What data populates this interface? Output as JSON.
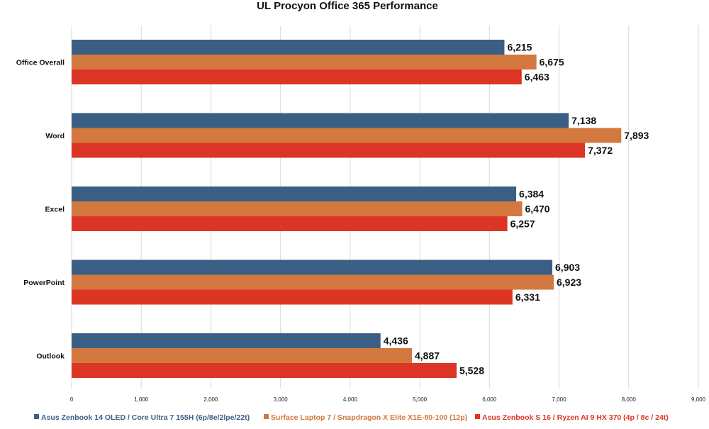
{
  "chart_data": {
    "type": "bar",
    "orientation": "horizontal",
    "title": "UL Procyon Office 365 Performance",
    "xlabel": "",
    "ylabel": "",
    "categories": [
      "Office Overall",
      "Word",
      "Excel",
      "PowerPoint",
      "Outlook"
    ],
    "series": [
      {
        "name": "Asus Zenbook 14 OLED / Core Ultra 7 155H (6p/8e/2lpe/22t)",
        "color": "#3b5f84",
        "values": [
          6215,
          7138,
          6384,
          6903,
          4436
        ]
      },
      {
        "name": "Surface Laptop 7 / Snapdragon X Elite X1E-80-100 (12p)",
        "color": "#d3783e",
        "values": [
          6675,
          7893,
          6470,
          6923,
          4887
        ]
      },
      {
        "name": "Asus Zenbook S 16 / Ryzen AI 9 HX 370 (4p / 8c  / 24t)",
        "color": "#dd3525",
        "values": [
          6463,
          7372,
          6257,
          6331,
          5528
        ]
      }
    ],
    "xlim": [
      0,
      9000
    ],
    "xticks": [
      0,
      1000,
      2000,
      3000,
      4000,
      5000,
      6000,
      7000,
      8000,
      9000
    ],
    "xtick_labels": [
      "0",
      "1,000",
      "2,000",
      "3,000",
      "4,000",
      "5,000",
      "6,000",
      "7,000",
      "8,000",
      "9,000"
    ],
    "grid": true,
    "legend_position": "bottom"
  }
}
